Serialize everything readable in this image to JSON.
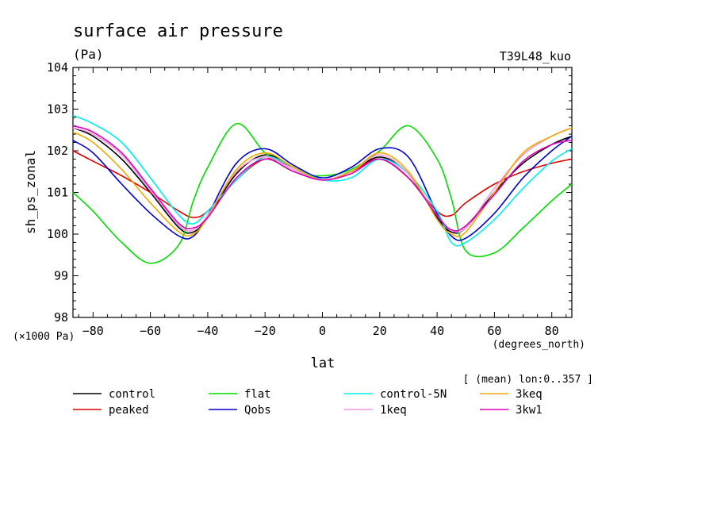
{
  "header": {
    "title": "surface air pressure",
    "units": "(Pa)",
    "run_label": "T39L48_kuo"
  },
  "chart_data": {
    "type": "line",
    "title": "surface air pressure",
    "ylabel": "sh_ps_zonal",
    "xlabel": "lat",
    "y_multiplier_label": "(×1000 Pa)",
    "x_units_label": "(degrees_north)",
    "subtitle_note": "[ (mean) lon:0..357 ]",
    "xlim": [
      -87,
      87
    ],
    "ylim": [
      98,
      104
    ],
    "x_ticks": [
      -80,
      -60,
      -40,
      -20,
      0,
      20,
      40,
      60,
      80
    ],
    "y_ticks": [
      98,
      99,
      100,
      101,
      102,
      103,
      104
    ],
    "x_tick_labels": [
      "−80",
      "−60",
      "−40",
      "−20",
      "0",
      "20",
      "40",
      "60",
      "80"
    ],
    "y_tick_labels": [
      "98",
      "99",
      "100",
      "101",
      "102",
      "103",
      "104"
    ],
    "x": [
      -87,
      -80,
      -70,
      -60,
      -50,
      -45,
      -40,
      -30,
      -20,
      -10,
      0,
      10,
      20,
      30,
      40,
      45,
      50,
      60,
      70,
      80,
      87
    ],
    "series": [
      {
        "name": "control",
        "color": "#000000",
        "values": [
          102.55,
          102.35,
          101.8,
          101.0,
          100.15,
          100.05,
          100.4,
          101.45,
          101.9,
          101.6,
          101.3,
          101.5,
          101.85,
          101.45,
          100.4,
          100.05,
          100.15,
          101.0,
          101.7,
          102.15,
          102.35
        ]
      },
      {
        "name": "peaked",
        "color": "#e00000",
        "values": [
          102.0,
          101.75,
          101.4,
          101.0,
          100.55,
          100.4,
          100.55,
          101.3,
          101.8,
          101.6,
          101.3,
          101.5,
          101.8,
          101.35,
          100.55,
          100.45,
          100.75,
          101.2,
          101.5,
          101.7,
          101.8
        ]
      },
      {
        "name": "flat",
        "color": "#00dd00",
        "values": [
          101.0,
          100.55,
          99.8,
          99.3,
          99.75,
          100.8,
          101.6,
          102.65,
          101.95,
          101.5,
          101.4,
          101.55,
          102.0,
          102.6,
          101.8,
          100.85,
          99.6,
          99.55,
          100.15,
          100.8,
          101.2
        ]
      },
      {
        "name": "Qobs",
        "color": "#0000cc",
        "values": [
          102.25,
          101.95,
          101.2,
          100.5,
          99.95,
          99.95,
          100.45,
          101.7,
          102.05,
          101.65,
          101.35,
          101.6,
          102.05,
          101.85,
          100.5,
          99.95,
          99.9,
          100.5,
          101.35,
          102.0,
          102.35
        ]
      },
      {
        "name": "control-5N",
        "color": "#00eeee",
        "values": [
          102.85,
          102.65,
          102.2,
          101.35,
          100.45,
          100.25,
          100.55,
          101.3,
          101.85,
          101.6,
          101.3,
          101.35,
          101.8,
          101.45,
          100.55,
          99.8,
          99.8,
          100.35,
          101.1,
          101.75,
          102.05
        ]
      },
      {
        "name": "1keq",
        "color": "#ee99dd",
        "values": [
          102.55,
          102.4,
          101.9,
          101.05,
          100.2,
          100.1,
          100.45,
          101.5,
          101.85,
          101.55,
          101.3,
          101.5,
          101.9,
          101.45,
          100.45,
          100.1,
          100.15,
          101.1,
          101.9,
          102.35,
          102.55
        ]
      },
      {
        "name": "3keq",
        "color": "#eeaa00",
        "values": [
          102.45,
          102.2,
          101.55,
          100.75,
          100.05,
          100.0,
          100.4,
          101.55,
          101.95,
          101.6,
          101.3,
          101.5,
          101.95,
          101.5,
          100.35,
          100.0,
          100.05,
          101.0,
          101.95,
          102.35,
          102.55
        ]
      },
      {
        "name": "3kw1",
        "color": "#dd00bb",
        "values": [
          102.6,
          102.45,
          101.95,
          101.1,
          100.25,
          100.15,
          100.4,
          101.35,
          101.8,
          101.5,
          101.3,
          101.45,
          101.8,
          101.35,
          100.45,
          100.1,
          100.2,
          100.95,
          101.75,
          102.15,
          102.25
        ]
      }
    ]
  }
}
